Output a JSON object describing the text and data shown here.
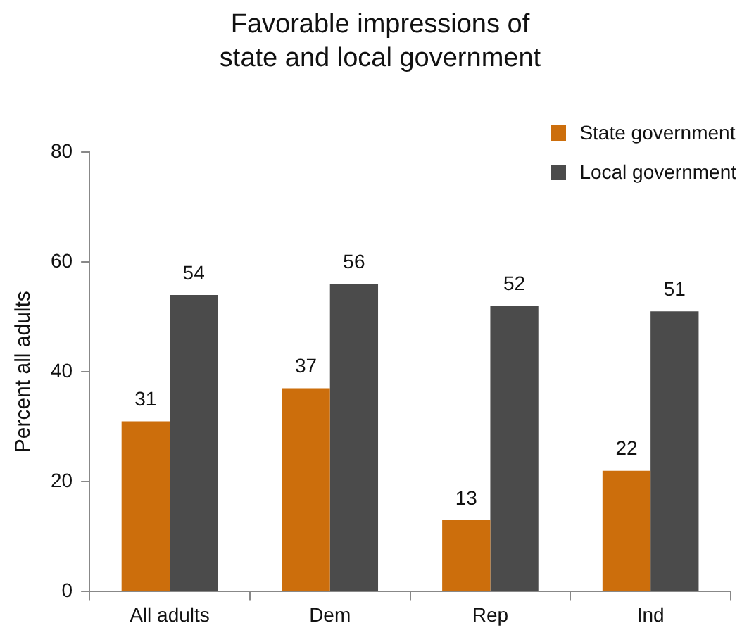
{
  "chart_data": {
    "type": "bar",
    "title": "Favorable impressions of state and local government",
    "ylabel": "Percent all adults",
    "categories": [
      "All adults",
      "Dem",
      "Rep",
      "Ind"
    ],
    "series": [
      {
        "name": "State government",
        "color": "#cc6e0c",
        "values": [
          31,
          37,
          13,
          22
        ]
      },
      {
        "name": "Local government",
        "color": "#4b4b4b",
        "values": [
          54,
          56,
          52,
          51
        ]
      }
    ],
    "ylim": [
      0,
      80
    ],
    "yticks": [
      0,
      20,
      40,
      60,
      80
    ],
    "grid": false,
    "legend": "top right",
    "data_labels": true
  }
}
